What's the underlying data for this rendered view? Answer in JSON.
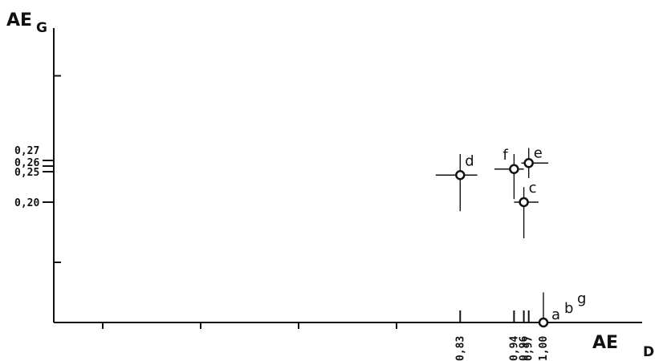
{
  "chart_data": {
    "type": "scatter",
    "x_title": "AE",
    "x_title_sub": "D",
    "y_title": "AE",
    "y_title_sub": "G",
    "xlim": [
      0.0,
      1.09
    ],
    "ylim": [
      0.0,
      0.48
    ],
    "grid": false,
    "x_ticks_labeled": [
      "0,83",
      "0,94",
      "0,96",
      "0,97",
      "1,00"
    ],
    "x_tick_values": [
      0.83,
      0.94,
      0.96,
      0.97,
      1.0
    ],
    "x_ticks_minor": [
      0.1,
      0.3,
      0.5,
      0.7
    ],
    "y_ticks_labeled": [
      "0,27",
      "0,26",
      "0,25",
      "0,20"
    ],
    "y_tick_values": [
      0.27,
      0.26,
      0.25,
      0.2
    ],
    "y_ticks_minor": [
      0.1,
      0.41
    ],
    "points": [
      {
        "label": "d",
        "x": 0.83,
        "y": 0.245,
        "xerr": [
          0.05,
          0.035
        ],
        "yerr": [
          0.06,
          0.035
        ]
      },
      {
        "label": "f",
        "x": 0.94,
        "y": 0.255,
        "xerr": [
          0.04,
          0.02
        ],
        "yerr": [
          0.05,
          0.025
        ]
      },
      {
        "label": "e",
        "x": 0.97,
        "y": 0.265,
        "xerr": [
          0.015,
          0.04
        ],
        "yerr": [
          0.025,
          0.025
        ]
      },
      {
        "label": "c",
        "x": 0.96,
        "y": 0.2,
        "xerr": [
          0.02,
          0.03
        ],
        "yerr": [
          0.06,
          0.025
        ]
      },
      {
        "label": "a",
        "x": 1.0,
        "y": 0.0,
        "xerr": [
          0.0,
          0.0
        ],
        "yerr": [
          0.0,
          0.05
        ]
      }
    ],
    "extra_labels": [
      "b",
      "g"
    ]
  }
}
